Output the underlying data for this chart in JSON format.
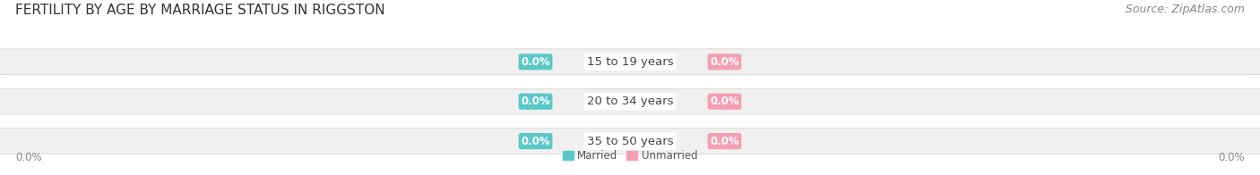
{
  "title": "FERTILITY BY AGE BY MARRIAGE STATUS IN RIGGSTON",
  "source": "Source: ZipAtlas.com",
  "categories": [
    "15 to 19 years",
    "20 to 34 years",
    "35 to 50 years"
  ],
  "married_values": [
    0.0,
    0.0,
    0.0
  ],
  "unmarried_values": [
    0.0,
    0.0,
    0.0
  ],
  "married_color": "#5bc8c8",
  "unmarried_color": "#f4a0b4",
  "value_label": "0.0%",
  "axis_label_left": "0.0%",
  "axis_label_right": "0.0%",
  "title_fontsize": 11,
  "source_fontsize": 9,
  "label_fontsize": 8.5,
  "category_fontsize": 9.5,
  "background_color": "#ffffff",
  "fig_width": 14.06,
  "fig_height": 1.96
}
